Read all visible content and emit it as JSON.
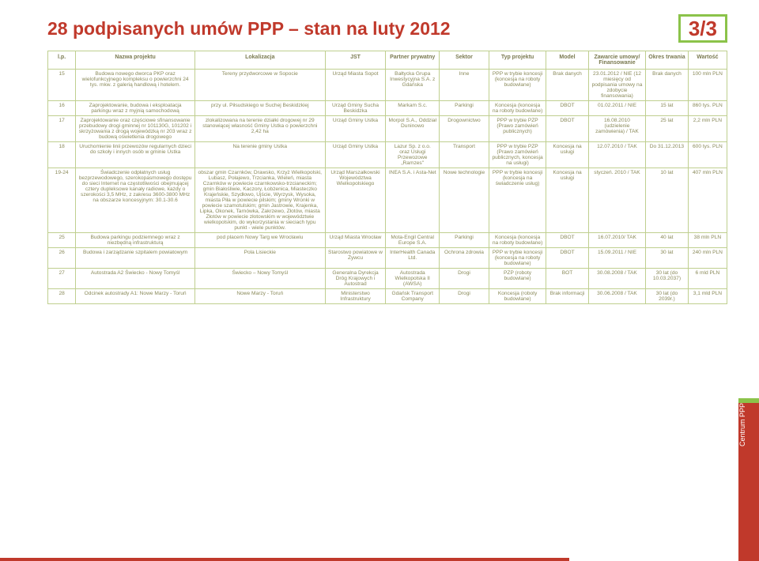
{
  "title": "28 podpisanych umów PPP – stan na luty 2012",
  "pageIndicator": "3/3",
  "sidebar": "Centrum PPP",
  "columns": [
    "l.p.",
    "Nazwa projektu",
    "Lokalizacja",
    "JST",
    "Partner prywatny",
    "Sektor",
    "Typ projektu",
    "Model",
    "Zawarcie umowy/ Finansowanie",
    "Okres trwania",
    "Wartość"
  ],
  "rows": [
    {
      "lp": "15",
      "name": "Budowa nowego dworca PKP oraz wielofunkcyjnego kompleksu o powierzchni 24 tys. mkw. z galerią handlową i hotelem.",
      "loc": "Tereny przydworcowe w Sopocie",
      "jst": "Urząd Miasta Sopot",
      "pp": "Bałtycka Grupa Inwestycyjna S.A. z Gdańska",
      "sec": "Inne",
      "typ": "PPP w trybie koncesji (koncesja na roboty budowlane)",
      "mod": "Brak danych",
      "zaw": "23.01.2012 / NIE (12 miesięcy od podpisania umowy na zdobycie finansowania)",
      "okr": "Brak danych",
      "war": "100 mln PLN"
    },
    {
      "lp": "16",
      "name": "Zaprojektowanie, budowa i eksploatacja parkingu wraz z myjnią samochodową",
      "loc": "przy ul. Piłsudskiego w Suchej Beskidzkiej",
      "jst": "Urząd Gminy Sucha Beskidzka",
      "pp": "Markam S.c.",
      "sec": "Parkingi",
      "typ": "Koncesja (koncesja na roboty budowlane)",
      "mod": "DBOT",
      "zaw": "01.02.2011 / NIE",
      "okr": "15 lat",
      "war": "860 tys. PLN"
    },
    {
      "lp": "17",
      "name": "Zaprojektowanie oraz częściowe sfinansowanie przebudowy drogi gminnej nr 101130G, 101202 i skrzyżowania z drogą wojewódzką nr 203 wraz z budową oświetlenia drogowego",
      "loc": "zlokalizowana na terenie działki drogowej nr 29 stanowiącej własność Gminy Ustka o powierzchni 2,42 ha",
      "jst": "Urząd Gminy Ustka",
      "pp": "Morpol S.A., Oddział Duninowo",
      "sec": "Drogownictwo",
      "typ": "PPP w trybie PZP (Prawo zamówień publicznych)",
      "mod": "DBOT",
      "zaw": "16.08.2010 (udzielenie zamówienia) / TAK",
      "okr": "25 lat",
      "war": "2,2 mln PLN"
    },
    {
      "lp": "18",
      "name": "Uruchomienie linii przewozów regularnych dzieci do szkoły i innych osób w gminie Ustka",
      "loc": "Na terenie gminy Ustka",
      "jst": "Urząd Gminy Ustka",
      "pp": "Lazur Sp. z o.o. oraz Usługi Przewozowe „Ramzes\"",
      "sec": "Transport",
      "typ": "PPP w trybie PZP (Prawo zamówień publicznych, koncesja na usługi)",
      "mod": "Koncesja na usługi",
      "zaw": "12.07.2010 / TAK",
      "okr": "Do 31.12.2013",
      "war": "600 tys. PLN"
    },
    {
      "lp": "19-24",
      "name": "Świadczenie odpłatnych usług bezprzewodowego, szerokopasmowego dostępu do sieci Internet na częstotliwości obejmującej cztery dupleksowe kanały radiowe, każdy o szerokości 3,5 MHz, z zakresu 3600-3800 MHz na obszarze koncesyjnym: 30.1-30.6",
      "loc": "obszar gmin Czarnków, Drawsko, Krzyż Wielkopolski, Lubasz, Połajewo, Trzcianka, Wieleń, miasta Czarnków w powiecie czarnkowsko-trzcianeckim; gmin Białośliwie, Kaczory, Łobżenica, Miasteczko Krajeńskie, Szydłowo, Ujście, Wyrzysk, Wysoka, miasta Piła w powiecie pilskim; gminy Wronki w powiecie szamotulskim; gmin Jastrowie, Krajenka, Lipka, Okonek, Tarnówka, Zakrzewo, Złotów, miasta Złotów w powiecie złotowskim w województwie wielkopolskim, do wykorzystania w sieciach typu punkt - wiele punktów.",
      "jst": "Urząd Marszałkowski Województwa Wielkopolskiego",
      "pp": "INEA S.A. i Asta-Net",
      "sec": "Nowe technologie",
      "typ": "PPP w trybie koncesji (koncesja na świadczenie usług)",
      "mod": "Koncesja na usługi",
      "zaw": "styczeń. 2010 / TAK",
      "okr": "10 lat",
      "war": "407 mln PLN"
    },
    {
      "lp": "25",
      "name": "Budowa parkingu podziemnego wraz z niezbędną infrastrukturą",
      "loc": "pod placem Nowy Targ we Wrocławiu",
      "jst": "Urząd Miasta Wrocław",
      "pp": "Mota-Engil Central Europe S.A.",
      "sec": "Parkingi",
      "typ": "Koncesja (koncesja na roboty budowlane)",
      "mod": "DBOT",
      "zaw": "16.07.2010/ TAK",
      "okr": "40 lat",
      "war": "38 mln PLN"
    },
    {
      "lp": "26",
      "name": "Budowa i zarządzanie szpitalem powiatowym",
      "loc": "Pola Lisieckie",
      "jst": "Starostwo powiatowe w Żywcu",
      "pp": "InterHealth Canada Ltd.",
      "sec": "Ochrona zdrowia",
      "typ": "PPP w trybie koncesji (koncesja na roboty budowlane)",
      "mod": "DBOT",
      "zaw": "15.09.2011 / NIE",
      "okr": "30 lat",
      "war": "240 mln PLN"
    },
    {
      "lp": "27",
      "name": "Autostrada A2 Świecko - Nowy Tomyśl",
      "loc": "Świecko – Nowy Tomyśl",
      "jst": "Generalna Dyrekcja Dróg Krajowych i Autostrad",
      "pp": "Autostrada Wielkopolska II (AWSA)",
      "sec": "Drogi",
      "typ": "PZP (roboty budowlane)",
      "mod": "BOT",
      "zaw": "30.08.2008 / TAK",
      "okr": "30 lat (do 10.03.2037)",
      "war": "6 mld PLN"
    },
    {
      "lp": "28",
      "name": "Odcinek autostrady A1: Nowe Marzy - Toruń",
      "loc": "Nowe Marzy - Toruń",
      "jst": "Ministerstwo Infrastruktury",
      "pp": "Gdańsk Transport Company",
      "sec": "Drogi",
      "typ": "Koncesja (roboty budowlane)",
      "mod": "Brak informacji",
      "zaw": "30.06.2008 / TAK",
      "okr": "30 lat (do 2039r.)",
      "war": "3,1 mld PLN"
    }
  ]
}
